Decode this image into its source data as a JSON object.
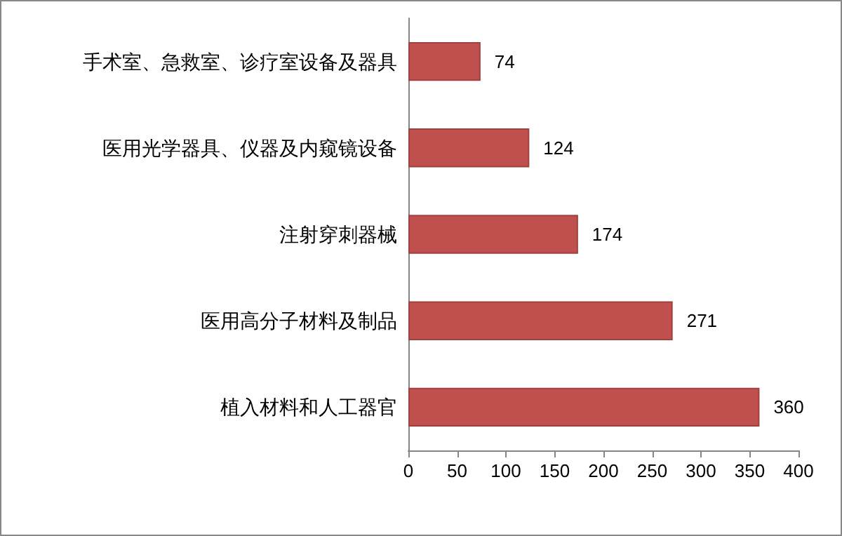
{
  "chart_data": {
    "type": "bar",
    "orientation": "horizontal",
    "categories": [
      "手术室、急救室、诊疗室设备及器具",
      "医用光学器具、仪器及内窥镜设备",
      "注射穿刺器械",
      "医用高分子材料及制品",
      "植入材料和人工器官"
    ],
    "values": [
      74,
      124,
      174,
      271,
      360
    ],
    "color": "#c0504d",
    "data_labels": true,
    "xlim": [
      0,
      400
    ],
    "xticks": [
      0,
      50,
      100,
      150,
      200,
      250,
      300,
      350,
      400
    ]
  }
}
